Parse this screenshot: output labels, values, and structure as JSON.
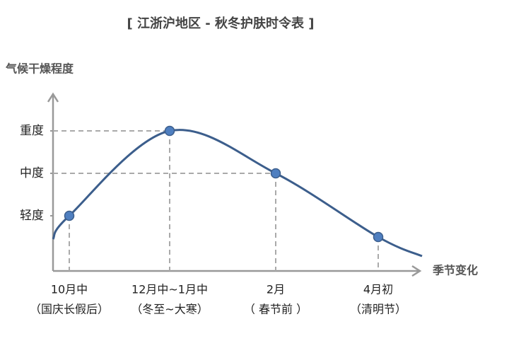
{
  "chart_data": {
    "type": "line",
    "title": "[ 江浙沪地区 - 秋冬护肤时令表 ]",
    "y_label": "气候干燥程度",
    "x_label": "季节变化",
    "categories": [
      "10月中",
      "12月中~1月中",
      "2月",
      "4月初"
    ],
    "category_notes": [
      "（国庆长假后）",
      "（冬至~大寒）",
      "（ 春节前 ）",
      "（清明节）"
    ],
    "values": [
      1,
      3,
      2,
      0.5
    ],
    "ylim": [
      -0.3,
      3.7
    ],
    "yticks": [
      {
        "value": 1,
        "label": "轻度"
      },
      {
        "value": 2,
        "label": "中度"
      },
      {
        "value": 3,
        "label": "重度"
      }
    ],
    "color": "#3c5e8c",
    "marker_color": "#4f7fc0"
  }
}
